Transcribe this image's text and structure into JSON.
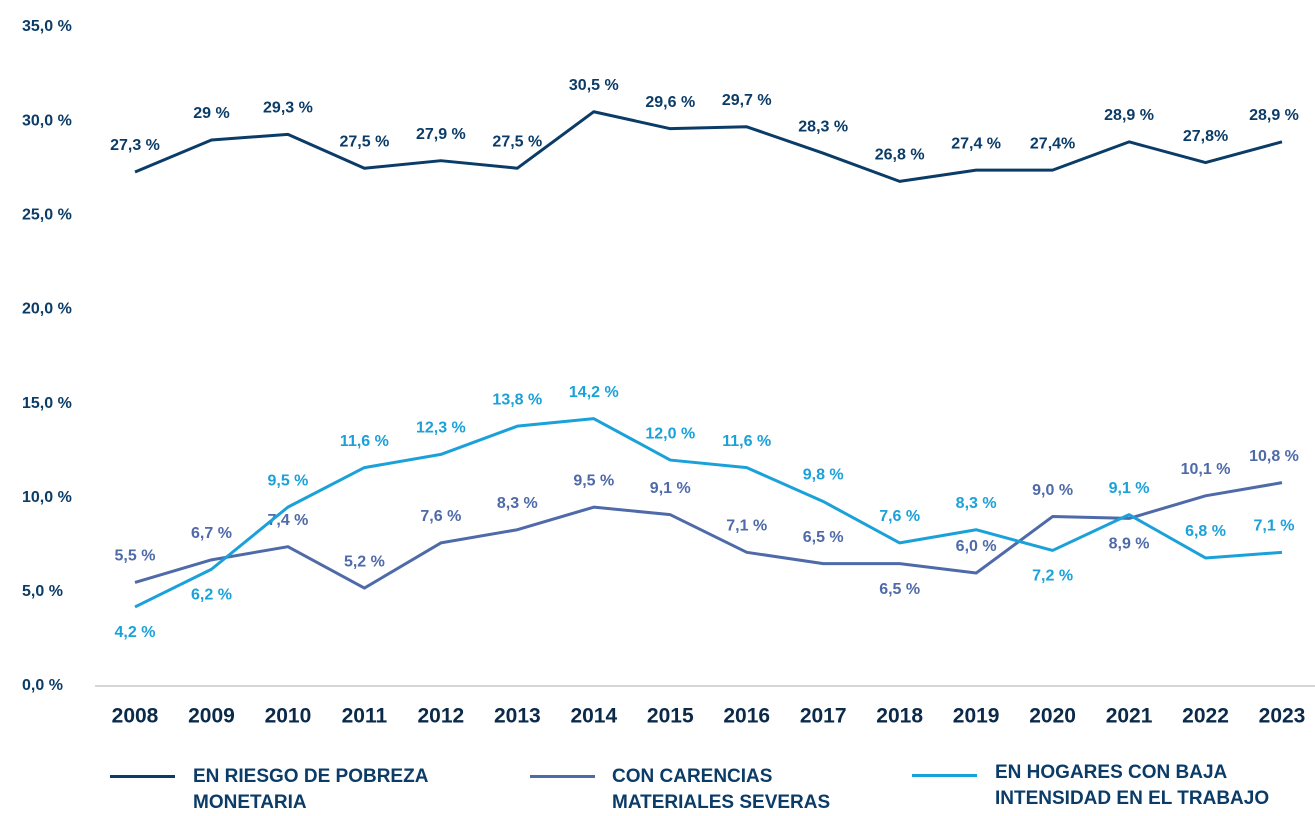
{
  "chart_data": {
    "type": "line",
    "categories": [
      "2008",
      "2009",
      "2010",
      "2011",
      "2012",
      "2013",
      "2014",
      "2015",
      "2016",
      "2017",
      "2018",
      "2019",
      "2020",
      "2021",
      "2022",
      "2023"
    ],
    "series": [
      {
        "name": "EN RIESGO DE POBREZA MONETARIA",
        "color": "#0b3c68",
        "values": [
          27.3,
          29,
          29.3,
          27.5,
          27.9,
          27.5,
          30.5,
          29.6,
          29.7,
          28.3,
          26.8,
          27.4,
          27.4,
          28.9,
          27.8,
          28.9
        ],
        "value_labels": [
          "27,3 %",
          "29 %",
          "29,3 %",
          "27,5 %",
          "27,9 %",
          "27,5 %",
          "30,5 %",
          "29,6 %",
          "29,7 %",
          "28,3 %",
          "26,8 %",
          "27,4 %",
          "27,4%",
          "28,9 %",
          "27,8%",
          "28,9 %"
        ]
      },
      {
        "name": "CON CARENCIAS MATERIALES SEVERAS",
        "color": "#4f6aa9",
        "values": [
          5.5,
          6.7,
          7.4,
          5.2,
          7.6,
          8.3,
          9.5,
          9.1,
          7.1,
          6.5,
          6.5,
          6.0,
          9.0,
          8.9,
          10.1,
          10.8
        ],
        "value_labels": [
          "5,5 %",
          "6,7 %",
          "7,4 %",
          "5,2 %",
          "7,6 %",
          "8,3 %",
          "9,5 %",
          "9,1 %",
          "7,1 %",
          "6,5 %",
          "6,5 %",
          "6,0 %",
          "9,0 %",
          "8,9 %",
          "10,1 %",
          "10,8 %"
        ]
      },
      {
        "name": "EN HOGARES CON BAJA INTENSIDAD EN EL TRABAJO",
        "color": "#1ba1d9",
        "values": [
          4.2,
          6.2,
          9.5,
          11.6,
          12.3,
          13.8,
          14.2,
          12.0,
          11.6,
          9.8,
          7.6,
          8.3,
          7.2,
          9.1,
          6.8,
          7.1
        ],
        "value_labels": [
          "4,2 %",
          "6,2 %",
          "9,5 %",
          "11,6 %",
          "12,3 %",
          "13,8 %",
          "14,2 %",
          "12,0 %",
          "11,6 %",
          "9,8 %",
          "7,6 %",
          "8,3 %",
          "7,2 %",
          "9,1 %",
          "6,8 %",
          "7,1 %"
        ]
      }
    ],
    "ylim": [
      0,
      35
    ],
    "yticks": [
      {
        "value": 0,
        "label": "0,0 %"
      },
      {
        "value": 5,
        "label": "5,0 %"
      },
      {
        "value": 10,
        "label": "10,0 %"
      },
      {
        "value": 15,
        "label": "15,0 %"
      },
      {
        "value": 20,
        "label": "20,0 %"
      },
      {
        "value": 25,
        "label": "25,0 %"
      },
      {
        "value": 30,
        "label": "30,0 %"
      },
      {
        "value": 35,
        "label": "35,0 %"
      }
    ],
    "grid": false,
    "legend": "bottom"
  }
}
